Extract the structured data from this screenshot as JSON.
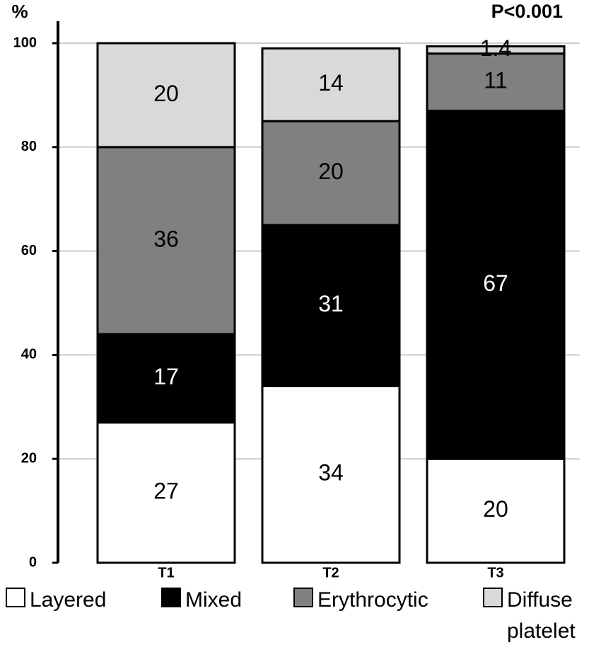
{
  "chart_data": {
    "type": "stacked-bar",
    "y_label": "%",
    "annotation": "P<0.001",
    "categories": [
      "T1",
      "T2",
      "T3"
    ],
    "series": [
      {
        "name": "Layered",
        "color": "#ffffff",
        "values": [
          27,
          34,
          20
        ]
      },
      {
        "name": "Mixed",
        "color": "#000000",
        "values": [
          17,
          31,
          67
        ]
      },
      {
        "name": "Erythrocytic",
        "color": "#808080",
        "values": [
          36,
          20,
          11
        ]
      },
      {
        "name": "Diffuse platelet",
        "color": "#d9d9d9",
        "values": [
          20,
          14,
          1.4
        ]
      }
    ],
    "ylim": [
      0,
      100
    ],
    "yticks": [
      0,
      20,
      40,
      60,
      80,
      100
    ],
    "grid": true
  }
}
